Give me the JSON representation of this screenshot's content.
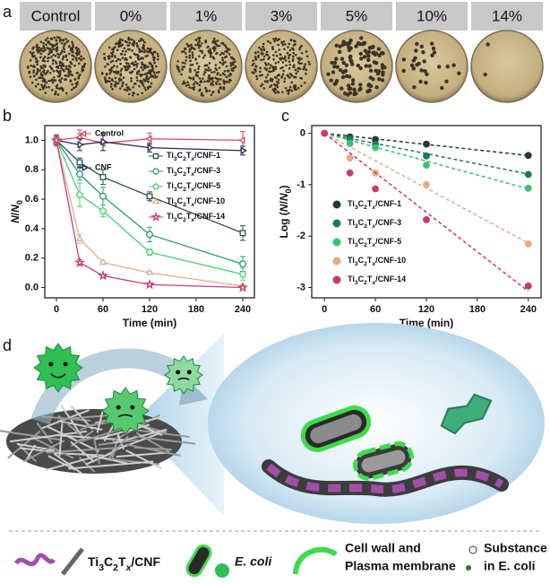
{
  "panel_labels": [
    "a",
    "b",
    "c",
    "d"
  ],
  "panel_a": {
    "labels": [
      "Control",
      "0%",
      "1%",
      "3%",
      "5%",
      "10%",
      "14%"
    ]
  },
  "chart_data": [
    {
      "type": "line",
      "x": [
        0,
        30,
        60,
        120,
        240
      ],
      "xlabel": "Time (min)",
      "ylabel": "N/N0",
      "xlim": [
        -15,
        255
      ],
      "ylim": [
        -0.07,
        1.1
      ],
      "xticks": [
        0,
        60,
        120,
        180,
        240
      ],
      "yticks": [
        {
          "value": 0,
          "label": "0.0"
        },
        0.2,
        0.4,
        0.6,
        0.8,
        {
          "value": 1,
          "label": "1.0"
        }
      ],
      "legend": "top-right",
      "series": [
        {
          "name": "Control",
          "color": "#d9475e",
          "marker": "triangle-left",
          "values": [
            1.0,
            1.02,
            0.98,
            1.01,
            1.0
          ],
          "errors": [
            0.04,
            0.05,
            0.05,
            0.04,
            0.06
          ]
        },
        {
          "name": "CNF",
          "color": "#2a2a5a",
          "marker": "triangle-right",
          "values": [
            1.0,
            0.97,
            0.99,
            0.95,
            0.93
          ],
          "errors": [
            0.03,
            0.04,
            0.06,
            0.03,
            0.03
          ]
        },
        {
          "name": "Ti3C2Tx/CNF-1",
          "color": "#2f4f4f",
          "marker": "square",
          "values": [
            1.0,
            0.85,
            0.75,
            0.62,
            0.37
          ],
          "errors": [
            0.02,
            0.03,
            0.05,
            0.03,
            0.05
          ]
        },
        {
          "name": "Ti3C2Tx/CNF-3",
          "color": "#2e9b7a",
          "marker": "hexagon",
          "values": [
            1.0,
            0.77,
            0.62,
            0.36,
            0.16
          ],
          "errors": [
            0.02,
            0.04,
            0.06,
            0.05,
            0.05
          ]
        },
        {
          "name": "Ti3C2Tx/CNF-5",
          "color": "#4fcf70",
          "marker": "pentagon",
          "values": [
            1.0,
            0.63,
            0.52,
            0.24,
            0.09
          ],
          "errors": [
            0.02,
            0.08,
            0.04,
            0.02,
            0.04
          ]
        },
        {
          "name": "Ti3C2Tx/CNF-10",
          "color": "#d9b08c",
          "marker": "triangle-up",
          "values": [
            1.0,
            0.33,
            0.17,
            0.1,
            0.01
          ],
          "errors": [
            0.02,
            0.03,
            0.01,
            0.01,
            0.01
          ]
        },
        {
          "name": "Ti3C2Tx/CNF-14",
          "color": "#cc3d7a",
          "marker": "star",
          "values": [
            1.0,
            0.17,
            0.08,
            0.02,
            0.0
          ],
          "errors": [
            0.02,
            0.02,
            0.01,
            0.01,
            0.01
          ]
        }
      ]
    },
    {
      "type": "scatter",
      "x": [
        0,
        30,
        60,
        120,
        240
      ],
      "xlabel": "Time (min)",
      "ylabel": "Log (N/N0)",
      "xlim": [
        -15,
        255
      ],
      "ylim": [
        -3.2,
        0.15
      ],
      "xticks": [
        0,
        60,
        120,
        180,
        240
      ],
      "yticks": [
        0,
        -1,
        -2,
        -3
      ],
      "legend": "bottom-left",
      "series": [
        {
          "name": "Ti3C2Tx/CNF-1",
          "color": "#1f3b3b",
          "values": [
            0,
            -0.07,
            -0.12,
            -0.21,
            -0.43
          ],
          "fit_slope": -0.0018
        },
        {
          "name": "Ti3C2Tx/CNF-3",
          "color": "#1c7a5c",
          "values": [
            0,
            -0.11,
            -0.21,
            -0.44,
            -0.8
          ],
          "fit_slope": -0.0033
        },
        {
          "name": "Ti3C2Tx/CNF-5",
          "color": "#37c46e",
          "values": [
            0,
            -0.2,
            -0.28,
            -0.62,
            -1.07
          ],
          "fit_slope": -0.0045
        },
        {
          "name": "Ti3C2Tx/CNF-10",
          "color": "#eaa885",
          "values": [
            0,
            -0.48,
            -0.77,
            -1.0,
            -2.15
          ],
          "fit_slope": -0.0089
        },
        {
          "name": "Ti3C2Tx/CNF-14",
          "color": "#c63a6c",
          "values": [
            0,
            -0.77,
            -1.08,
            -1.68,
            -2.97
          ],
          "fit_slope": -0.0128
        }
      ]
    }
  ],
  "panel_d": {
    "legend": {
      "material": "Ti3C2Tx/CNF",
      "bacterium": "E. coli",
      "cell_wall": [
        "Cell wall and",
        "Plasma membrane"
      ],
      "substance": [
        "Substance",
        "in E. coli"
      ]
    }
  }
}
